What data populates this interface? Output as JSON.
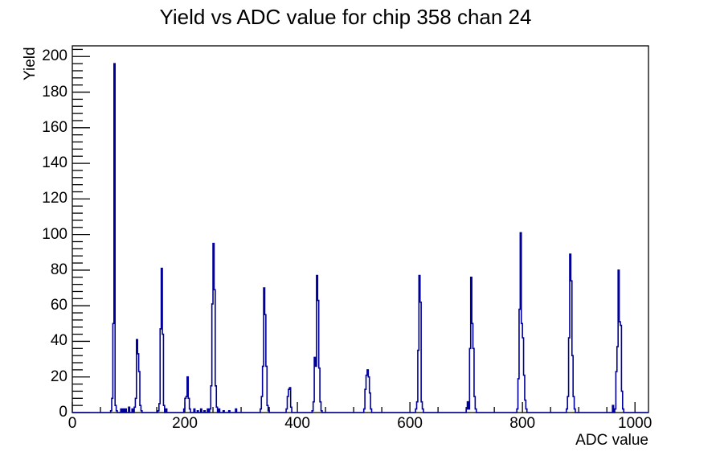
{
  "chart_data": {
    "type": "histogram-step-line",
    "title": "Yield vs ADC value for chip 358 chan 24",
    "xlabel": "ADC value",
    "ylabel": "Yield",
    "xlim": [
      0,
      1024
    ],
    "ylim": [
      0,
      206
    ],
    "x_major_ticks": [
      0,
      200,
      400,
      600,
      800,
      1000
    ],
    "x_tick_labels": [
      "0",
      "200",
      "400",
      "600",
      "800",
      "1000"
    ],
    "x_minor_step": 50,
    "y_major_ticks": [
      0,
      20,
      40,
      60,
      80,
      100,
      120,
      140,
      160,
      180,
      200
    ],
    "y_tick_labels": [
      "0",
      "20",
      "40",
      "60",
      "80",
      "100",
      "120",
      "140",
      "160",
      "180",
      "200"
    ],
    "y_minor_step": 4,
    "grid": false,
    "legend": "none",
    "line_color": "#000099",
    "axis_color": "#000000",
    "bin_width": 2,
    "bins": [
      [
        68,
        1
      ],
      [
        70,
        8
      ],
      [
        72,
        50
      ],
      [
        74,
        196
      ],
      [
        76,
        4
      ],
      [
        78,
        1
      ],
      [
        86,
        2
      ],
      [
        90,
        2
      ],
      [
        94,
        2
      ],
      [
        100,
        3
      ],
      [
        106,
        2
      ],
      [
        110,
        3
      ],
      [
        112,
        8
      ],
      [
        114,
        41
      ],
      [
        116,
        33
      ],
      [
        118,
        23
      ],
      [
        120,
        4
      ],
      [
        122,
        1
      ],
      [
        152,
        1
      ],
      [
        154,
        5
      ],
      [
        156,
        47
      ],
      [
        158,
        81
      ],
      [
        160,
        44
      ],
      [
        162,
        4
      ],
      [
        166,
        2
      ],
      [
        198,
        2
      ],
      [
        200,
        8
      ],
      [
        202,
        9
      ],
      [
        204,
        20
      ],
      [
        206,
        8
      ],
      [
        208,
        2
      ],
      [
        216,
        2
      ],
      [
        222,
        1
      ],
      [
        228,
        2
      ],
      [
        234,
        1
      ],
      [
        240,
        2
      ],
      [
        244,
        2
      ],
      [
        246,
        15
      ],
      [
        248,
        61
      ],
      [
        250,
        95
      ],
      [
        252,
        69
      ],
      [
        254,
        15
      ],
      [
        256,
        3
      ],
      [
        260,
        2
      ],
      [
        268,
        1
      ],
      [
        278,
        1
      ],
      [
        290,
        2
      ],
      [
        334,
        2
      ],
      [
        336,
        9
      ],
      [
        338,
        26
      ],
      [
        340,
        70
      ],
      [
        342,
        55
      ],
      [
        344,
        26
      ],
      [
        346,
        4
      ],
      [
        348,
        1
      ],
      [
        380,
        2
      ],
      [
        382,
        9
      ],
      [
        384,
        13
      ],
      [
        386,
        14
      ],
      [
        388,
        3
      ],
      [
        426,
        1
      ],
      [
        428,
        6
      ],
      [
        430,
        31
      ],
      [
        432,
        26
      ],
      [
        434,
        77
      ],
      [
        436,
        63
      ],
      [
        438,
        25
      ],
      [
        440,
        6
      ],
      [
        442,
        1
      ],
      [
        518,
        2
      ],
      [
        520,
        13
      ],
      [
        522,
        21
      ],
      [
        524,
        24
      ],
      [
        526,
        20
      ],
      [
        528,
        11
      ],
      [
        530,
        2
      ],
      [
        610,
        2
      ],
      [
        612,
        6
      ],
      [
        614,
        35
      ],
      [
        616,
        77
      ],
      [
        618,
        62
      ],
      [
        620,
        6
      ],
      [
        622,
        2
      ],
      [
        700,
        2
      ],
      [
        702,
        6
      ],
      [
        704,
        2
      ],
      [
        706,
        36
      ],
      [
        708,
        76
      ],
      [
        710,
        50
      ],
      [
        712,
        36
      ],
      [
        714,
        9
      ],
      [
        716,
        2
      ],
      [
        790,
        2
      ],
      [
        792,
        19
      ],
      [
        794,
        58
      ],
      [
        796,
        101
      ],
      [
        798,
        50
      ],
      [
        800,
        42
      ],
      [
        802,
        21
      ],
      [
        804,
        7
      ],
      [
        806,
        2
      ],
      [
        878,
        2
      ],
      [
        880,
        9
      ],
      [
        882,
        42
      ],
      [
        884,
        89
      ],
      [
        886,
        74
      ],
      [
        888,
        32
      ],
      [
        890,
        9
      ],
      [
        892,
        2
      ],
      [
        960,
        4
      ],
      [
        964,
        2
      ],
      [
        966,
        23
      ],
      [
        968,
        37
      ],
      [
        970,
        80
      ],
      [
        972,
        51
      ],
      [
        974,
        49
      ],
      [
        976,
        12
      ],
      [
        978,
        2
      ]
    ]
  }
}
